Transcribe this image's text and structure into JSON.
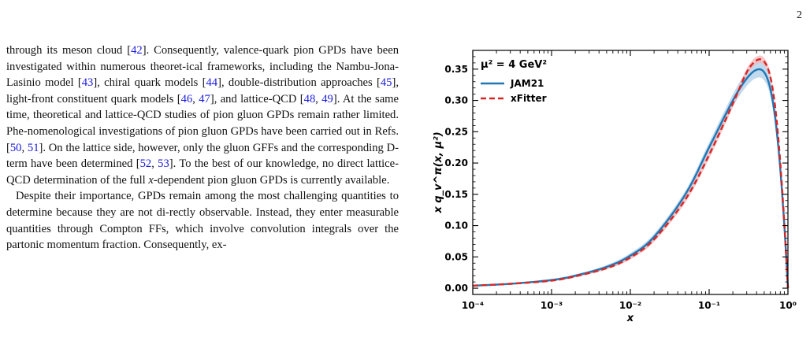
{
  "page_number": "2",
  "paragraph1": {
    "segments": [
      {
        "t": "through its meson cloud "
      },
      {
        "t": "[",
        "c": false
      },
      {
        "t": "42",
        "c": true
      },
      {
        "t": "]. Consequently, valence-quark pion GPDs have been investigated within numerous theoret-ical frameworks, including the Nambu-Jona-Lasinio model "
      },
      {
        "t": "["
      },
      {
        "t": "43",
        "c": true
      },
      {
        "t": "], chiral quark models ["
      },
      {
        "t": "44",
        "c": true
      },
      {
        "t": "], double-distribution approaches ["
      },
      {
        "t": "45",
        "c": true
      },
      {
        "t": "], light-front constituent quark models ["
      },
      {
        "t": "46",
        "c": true
      },
      {
        "t": ", "
      },
      {
        "t": "47",
        "c": true
      },
      {
        "t": "], and lattice-QCD ["
      },
      {
        "t": "48",
        "c": true
      },
      {
        "t": ", "
      },
      {
        "t": "49",
        "c": true
      },
      {
        "t": "].  At the same time, theoretical and lattice-QCD studies of pion gluon GPDs remain rather limited. Phe-nomenological investigations of pion gluon GPDs have been carried out in Refs. ["
      },
      {
        "t": "50",
        "c": true
      },
      {
        "t": ", "
      },
      {
        "t": "51",
        "c": true
      },
      {
        "t": "].  On the lattice side, however, only the gluon GFFs and the corresponding D-term have been determined ["
      },
      {
        "t": "52",
        "c": true
      },
      {
        "t": ", "
      },
      {
        "t": "53",
        "c": true
      },
      {
        "t": "]. To the best of our knowledge, no direct lattice-QCD determination of the full "
      },
      {
        "t": "x",
        "i": true
      },
      {
        "t": "-dependent pion gluon GPDs is currently available."
      }
    ]
  },
  "paragraph2": {
    "text": "Despite their importance, GPDs remain among the most challenging quantities to determine because they are not di-rectly observable.  Instead, they enter measurable quantities through Compton FFs, which involve convolution integrals over the partonic momentum fraction.  Consequently, ex-"
  },
  "chart_data": {
    "type": "line",
    "x_scale": "log",
    "xlim": [
      0.0001,
      1
    ],
    "ylim": [
      -0.01,
      0.38
    ],
    "xlabel": "x",
    "ylabel": "x q_v^π(x, μ²)",
    "annotation": "μ² = 4 GeV²",
    "x_tick_labels": [
      "10⁻⁴",
      "10⁻³",
      "10⁻²",
      "10⁻¹",
      "10⁰"
    ],
    "y_tick_labels": [
      "0.00",
      "0.05",
      "0.10",
      "0.15",
      "0.20",
      "0.25",
      "0.30",
      "0.35"
    ],
    "legend_position": "top-left",
    "grid": false,
    "series": [
      {
        "name": "JAM21",
        "color": "#1f77b4",
        "band_color": "#aecde8",
        "style": "solid",
        "x": [
          0.0001,
          0.0003,
          0.001,
          0.002,
          0.005,
          0.01,
          0.02,
          0.05,
          0.1,
          0.2,
          0.3,
          0.4,
          0.5,
          0.6,
          0.7,
          0.8,
          0.9,
          0.95,
          1.0
        ],
        "y": [
          0.004,
          0.007,
          0.013,
          0.02,
          0.034,
          0.052,
          0.082,
          0.15,
          0.225,
          0.3,
          0.335,
          0.349,
          0.345,
          0.318,
          0.265,
          0.19,
          0.1,
          0.05,
          0.0
        ],
        "band_halfwidth": [
          0.001,
          0.001,
          0.002,
          0.002,
          0.003,
          0.004,
          0.005,
          0.006,
          0.008,
          0.01,
          0.012,
          0.013,
          0.013,
          0.012,
          0.011,
          0.009,
          0.006,
          0.004,
          0.001
        ]
      },
      {
        "name": "xFitter",
        "color": "#d62728",
        "band_color": "#f4b6b6",
        "style": "dashed",
        "x": [
          0.0001,
          0.0003,
          0.001,
          0.002,
          0.005,
          0.01,
          0.02,
          0.05,
          0.1,
          0.2,
          0.3,
          0.4,
          0.5,
          0.6,
          0.7,
          0.8,
          0.9,
          0.95,
          1.0
        ],
        "y": [
          0.004,
          0.007,
          0.012,
          0.019,
          0.032,
          0.049,
          0.078,
          0.142,
          0.213,
          0.295,
          0.345,
          0.364,
          0.362,
          0.337,
          0.282,
          0.2,
          0.104,
          0.052,
          0.0
        ],
        "band_halfwidth": [
          0.001,
          0.001,
          0.001,
          0.002,
          0.002,
          0.003,
          0.004,
          0.005,
          0.006,
          0.006,
          0.006,
          0.006,
          0.006,
          0.006,
          0.005,
          0.004,
          0.003,
          0.002,
          0.001
        ]
      }
    ]
  }
}
